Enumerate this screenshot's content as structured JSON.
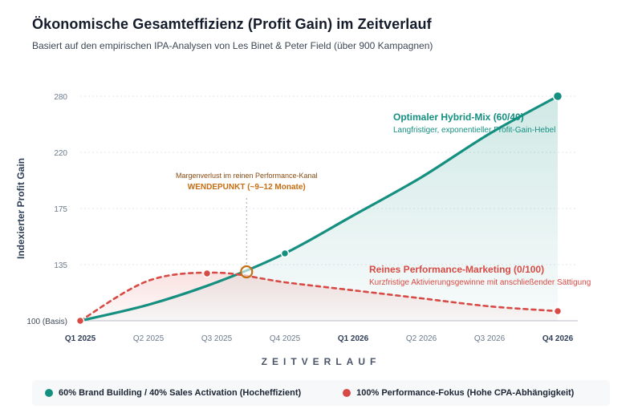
{
  "header": {
    "title": "Ökonomische Gesamteffizienz (Profit Gain) im Zeitverlauf",
    "subtitle": "Basiert auf den empirischen IPA-Analysen von Les Binet & Peter Field (über 900 Kampagnen)"
  },
  "colors": {
    "teal": "#148f80",
    "red": "#d84a45",
    "orange": "#c56d12"
  },
  "chart_data": {
    "type": "line",
    "title": "Ökonomische Gesamteffizienz (Profit Gain) im Zeitverlauf",
    "ylabel": "Indexierter Profit Gain",
    "xlabel": "ZEITVERLAUF",
    "categories": [
      "Q1 2025",
      "Q2 2025",
      "Q3 2025",
      "Q4 2025",
      "Q1 2026",
      "Q2 2026",
      "Q3 2026",
      "Q4 2026"
    ],
    "bold_categories": [
      "Q1 2025",
      "Q1 2026",
      "Q4 2026"
    ],
    "y_ticks": [
      {
        "value": 100,
        "label": "100 (Basis)"
      },
      {
        "value": 135,
        "label": "135"
      },
      {
        "value": 175,
        "label": "175"
      },
      {
        "value": 220,
        "label": "220"
      },
      {
        "value": 280,
        "label": "280"
      }
    ],
    "grid": true,
    "series": [
      {
        "name": "60% Brand Building / 40% Sales Activation (Hocheffizient)",
        "color": "#148f80",
        "style": "solid",
        "area_fill": true,
        "values": [
          100,
          110,
          124,
          143,
          170,
          200,
          240,
          280
        ],
        "markers": [
          3,
          7
        ]
      },
      {
        "name": "100% Performance-Fokus (Hohe CPA-Abhängigkeit)",
        "color": "#d84a45",
        "style": "dashed",
        "area_fill": true,
        "values": [
          100,
          125,
          130,
          124,
          119,
          114,
          109,
          106
        ],
        "markers": [
          0,
          7
        ],
        "peak_marker": {
          "x": 2.0,
          "y": 130
        }
      }
    ],
    "annotations": {
      "turning_point": {
        "x": 2.45,
        "y": 132,
        "line1": "Margenverlust im reinen Performance-Kanal",
        "line2": "WENDEPUNKT (~9–12 Monate)"
      },
      "hybrid": {
        "title": "Optimaler Hybrid-Mix (60/40)",
        "subtitle": "Langfristiger, exponentieller Profit-Gain-Hebel"
      },
      "performance": {
        "title": "Reines Performance-Marketing (0/100)",
        "subtitle": "Kurzfristige Aktivierungsgewinne mit anschließender Sättigung"
      }
    }
  },
  "legend": {
    "items": [
      {
        "label": "60% Brand Building / 40% Sales Activation (Hocheffizient)",
        "color": "#148f80"
      },
      {
        "label": "100% Performance-Fokus (Hohe CPA-Abhängigkeit)",
        "color": "#d84a45"
      }
    ]
  }
}
